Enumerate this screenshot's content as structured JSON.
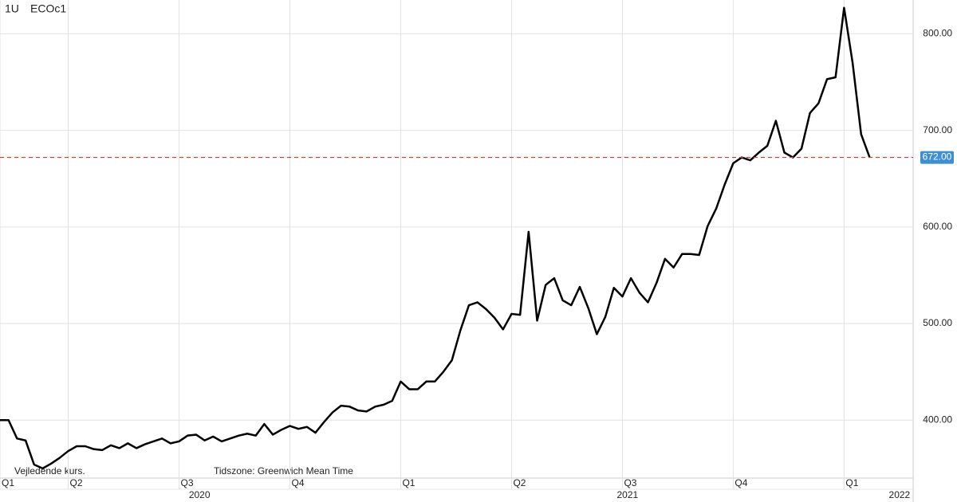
{
  "chart_data": {
    "type": "line",
    "symbol": [
      "1U",
      "ECOc1"
    ],
    "notes": [
      "Vejledende kurs.",
      "Tidszone: Greenwich Mean Time"
    ],
    "x": [
      0,
      1,
      2,
      3,
      4,
      5,
      6,
      7,
      8,
      9,
      10,
      11,
      12,
      13,
      14,
      15,
      16,
      17,
      18,
      19,
      20,
      21,
      22,
      23,
      24,
      25,
      26,
      27,
      28,
      29,
      30,
      31,
      32,
      33,
      34,
      35,
      36,
      37,
      38,
      39,
      40,
      41,
      42,
      43,
      44,
      45,
      46,
      47,
      48,
      49,
      50,
      51,
      52,
      53,
      54,
      55,
      56,
      57,
      58,
      59,
      60,
      61,
      62,
      63,
      64,
      65,
      66,
      67,
      68,
      69,
      70,
      71,
      72,
      73,
      74,
      75,
      76,
      77,
      78,
      79,
      80,
      81,
      82,
      83,
      84,
      85,
      86,
      87,
      88,
      89,
      90,
      91,
      92,
      93,
      94,
      95,
      96,
      97,
      98,
      99,
      100,
      101,
      102
    ],
    "series": [
      {
        "color": "#000000",
        "values": [
          400,
          400,
          381,
          379,
          354,
          350,
          355,
          361,
          368,
          373,
          373,
          370,
          369,
          374,
          371,
          376,
          371,
          375,
          378,
          381,
          376,
          378,
          384,
          385,
          379,
          383,
          378,
          381,
          384,
          386,
          384,
          396,
          385,
          390,
          394,
          391,
          393,
          387,
          398,
          408,
          415,
          414,
          410,
          409,
          414,
          416,
          420,
          440,
          432,
          432,
          440,
          440,
          450,
          462,
          493,
          519,
          522,
          515,
          506,
          494,
          510,
          509,
          595,
          503,
          540,
          547,
          524,
          519,
          538,
          516,
          489,
          507,
          537,
          528,
          547,
          532,
          522,
          542,
          567,
          558,
          572,
          572,
          571,
          601,
          619,
          644,
          666,
          672,
          669,
          677,
          684,
          710,
          677,
          672,
          681,
          718,
          728,
          753,
          755,
          827,
          770,
          696,
          672
        ]
      }
    ],
    "current": {
      "value": 672,
      "label": "672.00",
      "color": "#e03030"
    },
    "xlim": [
      0,
      107.1
    ],
    "xticks": [
      {
        "value": 0,
        "label": "Q1"
      },
      {
        "value": 8,
        "label": "Q2"
      },
      {
        "value": 21,
        "label": "Q3"
      },
      {
        "value": 34,
        "label": "Q4"
      },
      {
        "value": 47,
        "label": "Q1"
      },
      {
        "value": 60,
        "label": "Q2"
      },
      {
        "value": 73,
        "label": "Q3"
      },
      {
        "value": 86,
        "label": "Q4"
      },
      {
        "value": 99,
        "label": "Q1"
      }
    ],
    "year_ticks": [
      {
        "value": 23.4,
        "label": "2020"
      },
      {
        "value": 73.6,
        "label": "2021"
      },
      {
        "value": 105.5,
        "label": "2022"
      }
    ],
    "ylim": [
      340,
      835
    ],
    "yticks": [
      {
        "value": 400,
        "label": "400.00"
      },
      {
        "value": 500,
        "label": "500.00"
      },
      {
        "value": 600,
        "label": "600.00"
      },
      {
        "value": 700,
        "label": "700.00"
      },
      {
        "value": 800,
        "label": "800.00"
      }
    ],
    "grid": true
  }
}
